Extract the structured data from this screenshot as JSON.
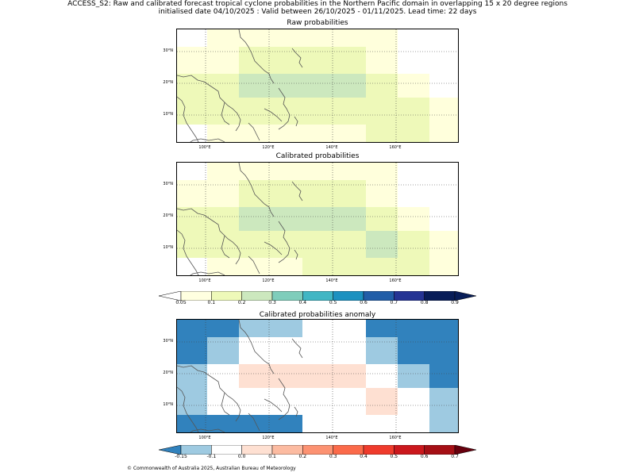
{
  "header": {
    "line1": "ACCESS_S2: Raw and calibrated forecast tropical cyclone probabilities in the Northern Pacific domain in overlapping 15 x 20 degree regions",
    "line2": "initialised date 04/10/2025 :  Valid between 26/10/2025 - 01/11/2025. Lead time: 22 days"
  },
  "axes": {
    "lat_labels": [
      "30°N",
      "20°N",
      "10°N"
    ],
    "lon_labels": [
      "100°E",
      "120°E",
      "140°E",
      "160°E"
    ]
  },
  "panels": [
    {
      "title": "Raw probabilities",
      "grid_rows": [
        [
          0,
          1,
          1,
          1,
          1,
          1,
          1,
          0,
          0
        ],
        [
          1,
          1,
          2,
          2,
          2,
          2,
          1,
          0,
          0
        ],
        [
          2,
          2,
          3,
          3,
          3,
          3,
          2,
          1,
          0
        ],
        [
          2,
          2,
          2,
          2,
          2,
          2,
          2,
          2,
          1
        ],
        [
          0,
          1,
          1,
          1,
          1,
          1,
          2,
          2,
          1
        ]
      ]
    },
    {
      "title": "Calibrated probabilities",
      "grid_rows": [
        [
          0,
          1,
          1,
          1,
          1,
          1,
          1,
          0,
          0
        ],
        [
          1,
          1,
          2,
          2,
          2,
          2,
          1,
          0,
          0
        ],
        [
          2,
          2,
          3,
          3,
          3,
          3,
          2,
          1,
          0
        ],
        [
          2,
          2,
          2,
          2,
          2,
          2,
          3,
          2,
          1
        ],
        [
          0,
          1,
          1,
          1,
          2,
          2,
          2,
          2,
          1
        ]
      ]
    },
    {
      "title": "Calibrated probabilities anomaly",
      "grid_rows": [
        [
          0,
          0,
          1,
          1,
          2,
          2,
          0,
          0,
          0
        ],
        [
          0,
          1,
          2,
          2,
          2,
          2,
          1,
          0,
          0
        ],
        [
          1,
          2,
          3,
          3,
          3,
          3,
          2,
          1,
          0
        ],
        [
          1,
          2,
          2,
          2,
          2,
          2,
          3,
          2,
          1
        ],
        [
          0,
          0,
          0,
          0,
          2,
          2,
          2,
          2,
          1
        ]
      ]
    }
  ],
  "colorbar_prob": {
    "labels": [
      "0.05",
      "0.1",
      "0.2",
      "0.3",
      "0.4",
      "0.5",
      "0.6",
      "0.7",
      "0.8",
      "0.9"
    ],
    "colors": [
      "#ffffe0",
      "#eef9b9",
      "#cce8be",
      "#7fcdbb",
      "#41b6c4",
      "#1d91c0",
      "#225ea8",
      "#253494",
      "#081d58"
    ]
  },
  "colorbar_anom": {
    "labels": [
      "-0.15",
      "-0.1",
      "0.0",
      "0.1",
      "0.2",
      "0.3",
      "0.4",
      "0.5",
      "0.6",
      "0.7"
    ],
    "colors": [
      "#9ecae1",
      "#ffffff",
      "#fee0d2",
      "#fcbba1",
      "#fc9272",
      "#fb6a4a",
      "#ef3b2c",
      "#cb181d",
      "#a50f15"
    ]
  },
  "cell_colors": {
    "prob": [
      "#ffffff",
      "#ffffdc",
      "#eef9b9",
      "#cce8be"
    ],
    "anom": [
      "#3182bd",
      "#9ecae1",
      "#ffffff",
      "#fee0d2"
    ]
  },
  "footer": "© Commonwealth of Australia 2025, Australian Bureau of Meteorology"
}
